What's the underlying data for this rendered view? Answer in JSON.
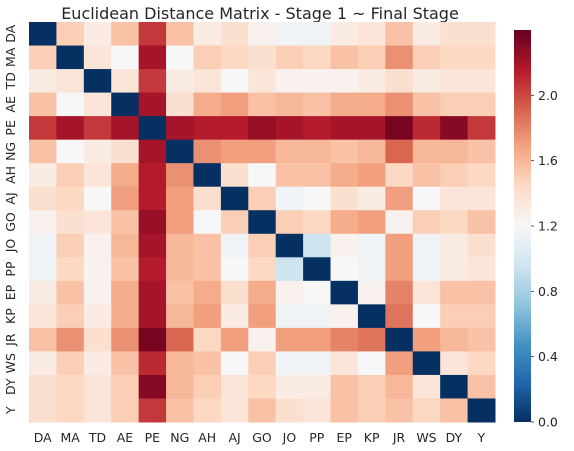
{
  "chart_data": {
    "type": "heatmap",
    "title": "Euclidean Distance Matrix - Stage 1 ~ Final Stage",
    "labels": [
      "DA",
      "MA",
      "TD",
      "AE",
      "PE",
      "NG",
      "AH",
      "AJ",
      "GO",
      "JO",
      "PP",
      "EP",
      "KP",
      "JR",
      "WS",
      "DY",
      "Y"
    ],
    "colorbar": {
      "min": 0.0,
      "max": 2.4,
      "ticks": [
        "0.0",
        "0.4",
        "0.8",
        "1.2",
        "1.6",
        "2.0"
      ],
      "tick_values": [
        0.0,
        0.4,
        0.8,
        1.2,
        1.6,
        2.0
      ],
      "colormap": "RdBu_r"
    },
    "values": [
      [
        0.0,
        1.5,
        1.3,
        1.55,
        2.05,
        1.55,
        1.3,
        1.4,
        1.25,
        1.15,
        1.15,
        1.3,
        1.35,
        1.55,
        1.3,
        1.4,
        1.4
      ],
      [
        1.5,
        0.0,
        1.35,
        1.2,
        2.2,
        1.2,
        1.5,
        1.45,
        1.4,
        1.5,
        1.45,
        1.55,
        1.5,
        1.75,
        1.5,
        1.45,
        1.45
      ],
      [
        1.3,
        1.35,
        0.0,
        1.35,
        2.05,
        1.3,
        1.35,
        1.2,
        1.35,
        1.25,
        1.25,
        1.25,
        1.3,
        1.4,
        1.3,
        1.35,
        1.35
      ],
      [
        1.55,
        1.2,
        1.35,
        0.0,
        2.2,
        1.4,
        1.65,
        1.7,
        1.55,
        1.6,
        1.55,
        1.65,
        1.65,
        1.75,
        1.55,
        1.5,
        1.5
      ],
      [
        2.05,
        2.2,
        2.05,
        2.2,
        0.0,
        2.2,
        2.15,
        2.15,
        2.25,
        2.2,
        2.15,
        2.2,
        2.2,
        2.35,
        2.1,
        2.3,
        2.05
      ],
      [
        1.55,
        1.2,
        1.3,
        1.4,
        2.2,
        0.0,
        1.75,
        1.7,
        1.7,
        1.6,
        1.6,
        1.55,
        1.6,
        1.9,
        1.6,
        1.6,
        1.55
      ],
      [
        1.3,
        1.5,
        1.35,
        1.65,
        2.15,
        1.75,
        0.0,
        1.4,
        1.2,
        1.55,
        1.55,
        1.65,
        1.7,
        1.45,
        1.55,
        1.5,
        1.45
      ],
      [
        1.4,
        1.45,
        1.2,
        1.7,
        2.15,
        1.7,
        1.4,
        0.0,
        1.5,
        1.15,
        1.2,
        1.4,
        1.3,
        1.7,
        1.2,
        1.35,
        1.35
      ],
      [
        1.25,
        1.4,
        1.35,
        1.55,
        2.25,
        1.7,
        1.2,
        1.5,
        0.0,
        1.5,
        1.45,
        1.65,
        1.7,
        1.25,
        1.5,
        1.45,
        1.55
      ],
      [
        1.15,
        1.5,
        1.25,
        1.6,
        2.2,
        1.6,
        1.55,
        1.15,
        1.5,
        0.0,
        0.95,
        1.25,
        1.15,
        1.7,
        1.15,
        1.3,
        1.4
      ],
      [
        1.15,
        1.45,
        1.25,
        1.55,
        2.15,
        1.6,
        1.55,
        1.2,
        1.45,
        0.95,
        0.0,
        1.2,
        1.15,
        1.7,
        1.15,
        1.3,
        1.35
      ],
      [
        1.3,
        1.55,
        1.25,
        1.65,
        2.2,
        1.55,
        1.65,
        1.4,
        1.65,
        1.25,
        1.2,
        0.0,
        1.25,
        1.8,
        1.35,
        1.55,
        1.55
      ],
      [
        1.35,
        1.5,
        1.3,
        1.65,
        2.2,
        1.6,
        1.7,
        1.3,
        1.7,
        1.15,
        1.15,
        1.25,
        0.0,
        1.85,
        1.2,
        1.5,
        1.5
      ],
      [
        1.55,
        1.75,
        1.4,
        1.75,
        2.35,
        1.9,
        1.45,
        1.7,
        1.25,
        1.7,
        1.7,
        1.8,
        1.85,
        0.0,
        1.7,
        1.6,
        1.55
      ],
      [
        1.3,
        1.5,
        1.3,
        1.55,
        2.1,
        1.6,
        1.55,
        1.2,
        1.5,
        1.15,
        1.15,
        1.35,
        1.2,
        1.7,
        0.0,
        1.35,
        1.45
      ],
      [
        1.4,
        1.45,
        1.35,
        1.5,
        2.3,
        1.6,
        1.5,
        1.35,
        1.45,
        1.3,
        1.3,
        1.55,
        1.5,
        1.6,
        1.35,
        0.0,
        1.55
      ],
      [
        1.4,
        1.45,
        1.35,
        1.5,
        2.05,
        1.55,
        1.45,
        1.35,
        1.55,
        1.4,
        1.35,
        1.55,
        1.5,
        1.55,
        1.45,
        1.55,
        0.0
      ]
    ]
  }
}
